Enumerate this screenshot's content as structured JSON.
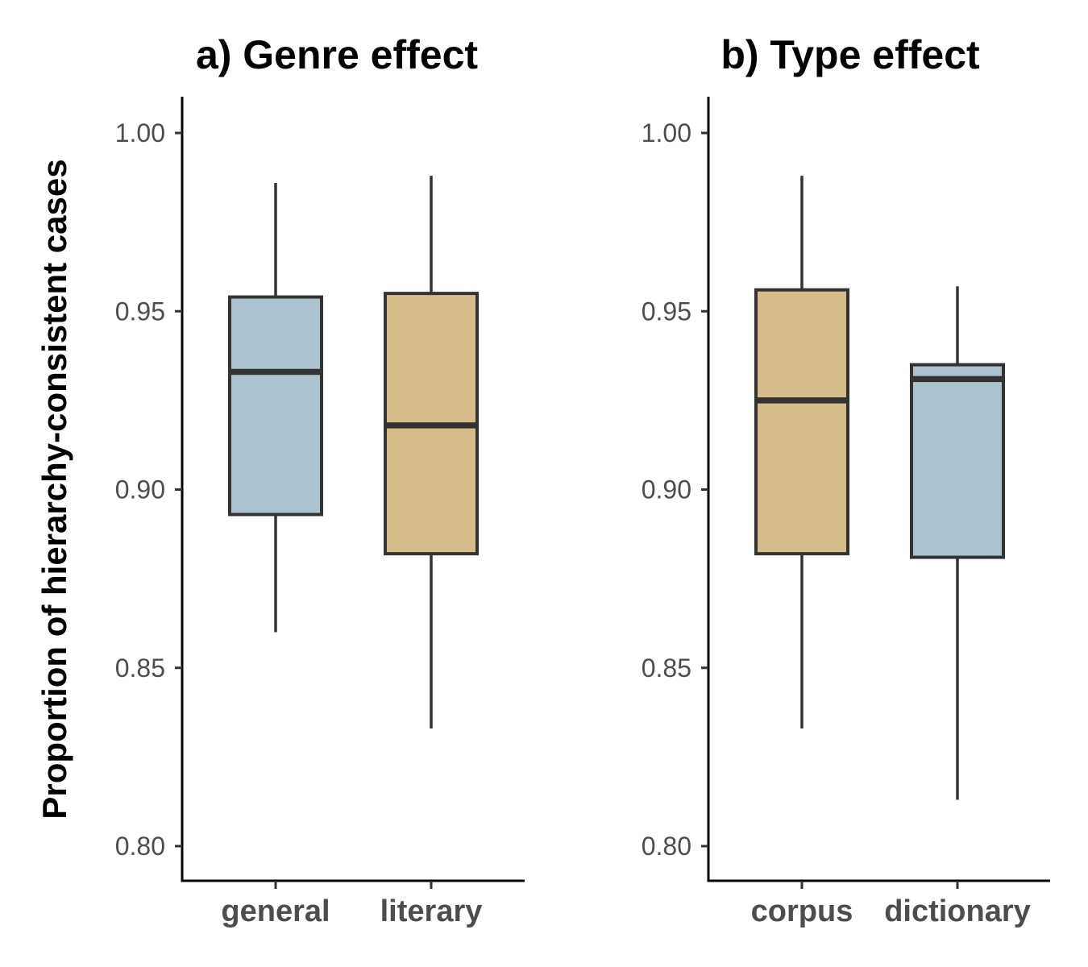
{
  "ylabel": "Proportion of hierarchy-consistent cases",
  "colors": {
    "general": "#aac3ce",
    "literary": "#d7bb89",
    "corpus": "#d7bb89",
    "dictionary": "#aac3ce",
    "outline": "#333333"
  },
  "chart_data": [
    {
      "type": "box",
      "title": "a) Genre effect",
      "ylim": [
        0.79,
        1.01
      ],
      "yticks": [
        1.0,
        0.95,
        0.9,
        0.85,
        0.8
      ],
      "ytick_labels": [
        "1.00",
        "0.95",
        "0.90",
        "0.85",
        "0.80"
      ],
      "categories": [
        "general",
        "literary"
      ],
      "boxes": [
        {
          "category": "general",
          "fill": "#aac3ce",
          "whisker_low": 0.86,
          "q1": 0.893,
          "median": 0.933,
          "q3": 0.954,
          "whisker_high": 0.986
        },
        {
          "category": "literary",
          "fill": "#d7bb89",
          "whisker_low": 0.833,
          "q1": 0.882,
          "median": 0.918,
          "q3": 0.955,
          "whisker_high": 0.988
        }
      ]
    },
    {
      "type": "box",
      "title": "b) Type effect",
      "ylim": [
        0.79,
        1.01
      ],
      "yticks": [
        1.0,
        0.95,
        0.9,
        0.85,
        0.8
      ],
      "ytick_labels": [
        "1.00",
        "0.95",
        "0.90",
        "0.85",
        "0.80"
      ],
      "categories": [
        "corpus",
        "dictionary"
      ],
      "boxes": [
        {
          "category": "corpus",
          "fill": "#d7bb89",
          "whisker_low": 0.833,
          "q1": 0.882,
          "median": 0.925,
          "q3": 0.956,
          "whisker_high": 0.988
        },
        {
          "category": "dictionary",
          "fill": "#aac3ce",
          "whisker_low": 0.813,
          "q1": 0.881,
          "median": 0.931,
          "q3": 0.935,
          "whisker_high": 0.957
        }
      ]
    }
  ]
}
